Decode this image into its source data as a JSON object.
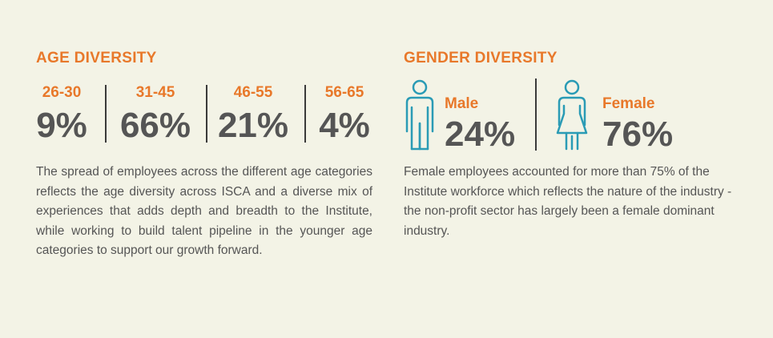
{
  "age_section": {
    "title": "AGE DIVERSITY",
    "groups": [
      {
        "range": "26-30",
        "percent": "9%"
      },
      {
        "range": "31-45",
        "percent": "66%"
      },
      {
        "range": "46-55",
        "percent": "21%"
      },
      {
        "range": "56-65",
        "percent": "4%"
      }
    ],
    "description": "The spread of employees across the different age categories reflects the age diversity across ISCA and a diverse mix of experiences that adds depth and breadth to the Institute, while working to build talent pipeline in the younger age categories to support our growth forward."
  },
  "gender_section": {
    "title": "GENDER DIVERSITY",
    "male": {
      "label": "Male",
      "percent": "24%",
      "icon": "male-person-icon"
    },
    "female": {
      "label": "Female",
      "percent": "76%",
      "icon": "female-person-icon"
    },
    "description": "Female employees accounted for more than 75% of the Institute workforce which reflects the nature of the industry - the non-profit sector has largely been a female dominant industry."
  },
  "colors": {
    "background": "#f3f3e6",
    "accent_orange": "#e8782a",
    "icon_teal": "#2a9bb5",
    "text_gray": "#555555"
  }
}
